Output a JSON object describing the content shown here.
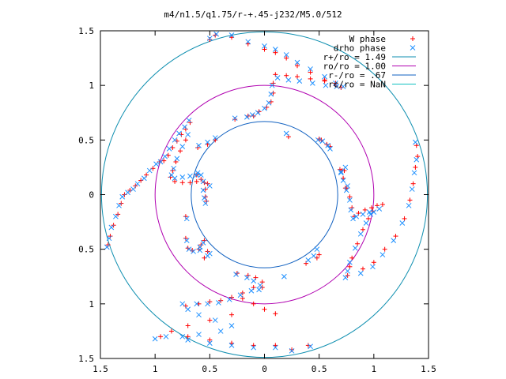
{
  "chart_data": {
    "type": "scatter",
    "title": "m4/n1.5/q1.75/r-+.45-j232/M5.0/512",
    "xlabel": "",
    "ylabel": "",
    "xlim": [
      -1.5,
      1.5
    ],
    "ylim": [
      -1.5,
      1.5
    ],
    "x_ticks": [
      -1.5,
      -1,
      -0.5,
      0,
      0.5,
      1,
      1.5
    ],
    "y_ticks": [
      -1.5,
      -1,
      -0.5,
      0,
      0.5,
      1,
      1.5
    ],
    "x_tick_labels": [
      "1.5",
      "1",
      "0.5",
      "0",
      "0.5",
      "1",
      "1.5"
    ],
    "y_tick_labels": [
      "1.5",
      "1",
      "0.5",
      "0",
      "0.5",
      "1",
      "1.5"
    ],
    "grid": false,
    "legend_position": "top-right",
    "legend": [
      {
        "label": "W phase",
        "color": "#ff0000",
        "marker": "plus"
      },
      {
        "label": "drho phase",
        "color": "#1e90ff",
        "marker": "x"
      },
      {
        "label": "r+/ro = 1.49",
        "color": "#0f8fb0",
        "marker": "line"
      },
      {
        "label": "ro/ro = 1.00",
        "color": "#b000b0",
        "marker": "line"
      },
      {
        "label": "r-/ro = .67",
        "color": "#1060c0",
        "marker": "line"
      },
      {
        "label": "rc/ro = NaN",
        "color": "#10c0c0",
        "marker": "line"
      }
    ],
    "circles": [
      {
        "name": "r+/ro = 1.49",
        "radius": 1.49,
        "color": "#0f8fb0"
      },
      {
        "name": "ro/ro = 1.00",
        "radius": 1.0,
        "color": "#b000b0"
      },
      {
        "name": "r-/ro = .67",
        "radius": 0.67,
        "color": "#1060c0"
      }
    ],
    "series": [
      {
        "name": "W phase",
        "color": "#ff0000",
        "marker": "plus",
        "points": [
          [
            -0.92,
            0.31
          ],
          [
            -0.88,
            0.36
          ],
          [
            -0.84,
            0.43
          ],
          [
            -0.8,
            0.49
          ],
          [
            -0.76,
            0.55
          ],
          [
            -0.72,
            0.6
          ],
          [
            -0.68,
            0.66
          ],
          [
            -0.72,
            0.5
          ],
          [
            -0.77,
            0.4
          ],
          [
            -0.81,
            0.3
          ],
          [
            -0.84,
            0.22
          ],
          [
            -0.86,
            0.16
          ],
          [
            -0.82,
            0.12
          ],
          [
            -0.75,
            0.11
          ],
          [
            -0.68,
            0.11
          ],
          [
            -0.62,
            0.12
          ],
          [
            -0.58,
            0.14
          ],
          [
            -0.55,
            0.11
          ],
          [
            -0.54,
            0.05
          ],
          [
            -0.54,
            -0.02
          ],
          [
            -0.53,
            -0.06
          ],
          [
            -0.96,
            0.3
          ],
          [
            -1.02,
            0.24
          ],
          [
            -1.08,
            0.18
          ],
          [
            -1.13,
            0.13
          ],
          [
            -1.18,
            0.08
          ],
          [
            -1.23,
            0.04
          ],
          [
            -1.28,
            0
          ],
          [
            -1.31,
            -0.08
          ],
          [
            -1.34,
            -0.18
          ],
          [
            -1.38,
            -0.28
          ],
          [
            -1.41,
            -0.38
          ],
          [
            -1.43,
            -0.46
          ],
          [
            -0.5,
            1.42
          ],
          [
            -0.45,
            1.46
          ],
          [
            -0.3,
            1.44
          ],
          [
            -0.15,
            1.38
          ],
          [
            0,
            1.33
          ],
          [
            0.1,
            1.3
          ],
          [
            0.2,
            1.25
          ],
          [
            0.3,
            1.18
          ],
          [
            0.42,
            1.12
          ],
          [
            0.55,
            1.05
          ],
          [
            0.65,
            1.0
          ],
          [
            0.7,
            0.98
          ],
          [
            0.1,
            1.1
          ],
          [
            0.2,
            1.09
          ],
          [
            0.3,
            1.08
          ],
          [
            0.42,
            1.06
          ],
          [
            0.55,
            1.04
          ],
          [
            0.65,
            1.02
          ],
          [
            0.08,
            1.02
          ],
          [
            0.08,
            0.93
          ],
          [
            0.06,
            0.85
          ],
          [
            0.02,
            0.8
          ],
          [
            -0.05,
            0.76
          ],
          [
            -0.15,
            0.72
          ],
          [
            -0.27,
            0.69
          ],
          [
            -0.1,
            0.72
          ],
          [
            0.5,
            0.51
          ],
          [
            0.52,
            0.5
          ],
          [
            0.57,
            0.46
          ],
          [
            0.6,
            0.44
          ],
          [
            0.71,
            0.22
          ],
          [
            0.72,
            0.15
          ],
          [
            0.69,
            0.23
          ],
          [
            0.74,
            0.06
          ],
          [
            0.78,
            -0.02
          ],
          [
            0.8,
            -0.12
          ],
          [
            0.82,
            -0.2
          ],
          [
            0.86,
            -0.17
          ],
          [
            0.92,
            -0.14
          ],
          [
            0.98,
            -0.12
          ],
          [
            1.03,
            -0.1
          ],
          [
            1.08,
            -0.09
          ],
          [
            0.99,
            -0.15
          ],
          [
            0.95,
            -0.22
          ],
          [
            0.9,
            -0.32
          ],
          [
            0.85,
            -0.45
          ],
          [
            0.8,
            -0.58
          ],
          [
            0.78,
            -0.66
          ],
          [
            0.76,
            -0.74
          ],
          [
            0.9,
            -0.68
          ],
          [
            1.0,
            -0.62
          ],
          [
            1.1,
            -0.5
          ],
          [
            1.2,
            -0.38
          ],
          [
            1.28,
            -0.22
          ],
          [
            1.33,
            -0.05
          ],
          [
            1.36,
            0.1
          ],
          [
            1.38,
            0.25
          ],
          [
            1.4,
            0.35
          ],
          [
            1.39,
            0.45
          ],
          [
            -0.72,
            -0.4
          ],
          [
            -0.7,
            -0.49
          ],
          [
            -0.66,
            -0.51
          ],
          [
            -0.6,
            -0.5
          ],
          [
            -0.52,
            -0.52
          ],
          [
            -0.55,
            -0.58
          ],
          [
            -0.25,
            -0.72
          ],
          [
            -0.15,
            -0.74
          ],
          [
            -0.08,
            -0.76
          ],
          [
            -0.02,
            -0.8
          ],
          [
            -0.02,
            -0.85
          ],
          [
            -0.1,
            -0.85
          ],
          [
            -0.2,
            -0.9
          ],
          [
            -0.3,
            -0.94
          ],
          [
            -0.4,
            -0.97
          ],
          [
            -0.5,
            -0.98
          ],
          [
            -0.6,
            -1.0
          ],
          [
            -0.72,
            -1.02
          ],
          [
            -0.2,
            -0.95
          ],
          [
            -0.1,
            -1.0
          ],
          [
            0,
            -1.05
          ],
          [
            0.1,
            -1.09
          ],
          [
            -0.3,
            -1.1
          ],
          [
            -0.5,
            -1.15
          ],
          [
            -0.7,
            -1.2
          ],
          [
            -0.85,
            -1.25
          ],
          [
            -0.95,
            -1.3
          ],
          [
            -0.7,
            -1.3
          ],
          [
            -0.5,
            -1.33
          ],
          [
            -0.3,
            -1.36
          ],
          [
            -0.1,
            -1.38
          ],
          [
            0.1,
            -1.38
          ],
          [
            0.25,
            -1.42
          ],
          [
            0.4,
            -1.38
          ],
          [
            -0.45,
            0.5
          ],
          [
            -0.52,
            0.46
          ],
          [
            -0.61,
            0.43
          ],
          [
            -0.62,
            0.18
          ],
          [
            -0.52,
            0.1
          ],
          [
            0.22,
            0.53
          ],
          [
            0.5,
            -0.55
          ],
          [
            0.48,
            -0.58
          ],
          [
            0.38,
            -0.63
          ],
          [
            0.73,
            0.22
          ],
          [
            0.75,
            0.06
          ],
          [
            -0.55,
            -0.42
          ],
          [
            -0.58,
            -0.46
          ],
          [
            -0.72,
            -0.2
          ]
        ]
      },
      {
        "name": "drho phase",
        "color": "#1e90ff",
        "marker": "x",
        "points": [
          [
            -0.95,
            0.3
          ],
          [
            -0.91,
            0.35
          ],
          [
            -0.87,
            0.42
          ],
          [
            -0.82,
            0.5
          ],
          [
            -0.78,
            0.56
          ],
          [
            -0.73,
            0.62
          ],
          [
            -0.69,
            0.68
          ],
          [
            -0.7,
            0.55
          ],
          [
            -0.75,
            0.44
          ],
          [
            -0.8,
            0.33
          ],
          [
            -0.83,
            0.24
          ],
          [
            -0.85,
            0.18
          ],
          [
            -0.82,
            0.15
          ],
          [
            -0.75,
            0.16
          ],
          [
            -0.68,
            0.17
          ],
          [
            -0.62,
            0.18
          ],
          [
            -0.58,
            0.18
          ],
          [
            -0.56,
            0.12
          ],
          [
            -0.56,
            0.04
          ],
          [
            -0.55,
            -0.03
          ],
          [
            -0.54,
            -0.08
          ],
          [
            -0.99,
            0.28
          ],
          [
            -1.05,
            0.22
          ],
          [
            -1.1,
            0.15
          ],
          [
            -1.16,
            0.1
          ],
          [
            -1.2,
            0.05
          ],
          [
            -1.25,
            0.02
          ],
          [
            -1.3,
            -0.02
          ],
          [
            -1.33,
            -0.1
          ],
          [
            -1.36,
            -0.2
          ],
          [
            -1.4,
            -0.3
          ],
          [
            -1.42,
            -0.4
          ],
          [
            -1.44,
            -0.48
          ],
          [
            -0.5,
            1.43
          ],
          [
            -0.44,
            1.47
          ],
          [
            -0.3,
            1.46
          ],
          [
            -0.15,
            1.4
          ],
          [
            0,
            1.36
          ],
          [
            0.1,
            1.33
          ],
          [
            0.2,
            1.28
          ],
          [
            0.3,
            1.21
          ],
          [
            0.42,
            1.15
          ],
          [
            0.55,
            1.08
          ],
          [
            0.65,
            1.02
          ],
          [
            0.72,
            0.99
          ],
          [
            0.12,
            1.07
          ],
          [
            0.22,
            1.05
          ],
          [
            0.32,
            1.04
          ],
          [
            0.44,
            1.02
          ],
          [
            0.56,
            1.0
          ],
          [
            0.66,
            0.99
          ],
          [
            0.07,
            1.0
          ],
          [
            0.06,
            0.92
          ],
          [
            0.04,
            0.84
          ],
          [
            0.0,
            0.79
          ],
          [
            -0.06,
            0.75
          ],
          [
            -0.16,
            0.71
          ],
          [
            -0.27,
            0.7
          ],
          [
            -0.11,
            0.73
          ],
          [
            0.49,
            0.5
          ],
          [
            0.53,
            0.49
          ],
          [
            0.58,
            0.45
          ],
          [
            0.6,
            0.42
          ],
          [
            0.7,
            0.2
          ],
          [
            0.72,
            0.13
          ],
          [
            0.7,
            0.21
          ],
          [
            0.75,
            0.04
          ],
          [
            0.78,
            -0.05
          ],
          [
            0.79,
            -0.14
          ],
          [
            0.81,
            -0.22
          ],
          [
            0.84,
            -0.2
          ],
          [
            0.9,
            -0.18
          ],
          [
            0.96,
            -0.16
          ],
          [
            1.0,
            -0.16
          ],
          [
            1.05,
            -0.13
          ],
          [
            0.97,
            -0.18
          ],
          [
            0.93,
            -0.26
          ],
          [
            0.88,
            -0.36
          ],
          [
            0.83,
            -0.49
          ],
          [
            0.78,
            -0.62
          ],
          [
            0.76,
            -0.7
          ],
          [
            0.74,
            -0.76
          ],
          [
            0.88,
            -0.72
          ],
          [
            0.99,
            -0.66
          ],
          [
            1.08,
            -0.55
          ],
          [
            1.18,
            -0.42
          ],
          [
            1.26,
            -0.26
          ],
          [
            1.32,
            -0.1
          ],
          [
            1.35,
            0.05
          ],
          [
            1.37,
            0.2
          ],
          [
            1.39,
            0.32
          ],
          [
            1.38,
            0.48
          ],
          [
            -0.71,
            -0.42
          ],
          [
            -0.69,
            -0.5
          ],
          [
            -0.65,
            -0.52
          ],
          [
            -0.59,
            -0.51
          ],
          [
            -0.5,
            -0.54
          ],
          [
            -0.52,
            -0.56
          ],
          [
            -0.26,
            -0.73
          ],
          [
            -0.16,
            -0.76
          ],
          [
            -0.1,
            -0.79
          ],
          [
            -0.04,
            -0.83
          ],
          [
            -0.05,
            -0.87
          ],
          [
            -0.12,
            -0.88
          ],
          [
            -0.22,
            -0.92
          ],
          [
            -0.32,
            -0.96
          ],
          [
            -0.42,
            -0.99
          ],
          [
            -0.52,
            -1.0
          ],
          [
            -0.62,
            -1.0
          ],
          [
            -0.75,
            -1.0
          ],
          [
            -0.7,
            -1.05
          ],
          [
            -0.6,
            -1.1
          ],
          [
            -0.45,
            -1.15
          ],
          [
            -0.3,
            -1.2
          ],
          [
            -0.4,
            -1.25
          ],
          [
            -0.6,
            -1.28
          ],
          [
            -0.75,
            -1.3
          ],
          [
            -0.9,
            -1.3
          ],
          [
            -1.0,
            -1.32
          ],
          [
            -0.7,
            -1.33
          ],
          [
            -0.5,
            -1.36
          ],
          [
            -0.3,
            -1.38
          ],
          [
            -0.1,
            -1.4
          ],
          [
            0.1,
            -1.4
          ],
          [
            0.25,
            -1.43
          ],
          [
            0.42,
            -1.39
          ],
          [
            -0.45,
            0.52
          ],
          [
            -0.52,
            0.48
          ],
          [
            -0.6,
            0.45
          ],
          [
            -0.61,
            0.2
          ],
          [
            -0.5,
            0.08
          ],
          [
            0.2,
            0.56
          ],
          [
            0.48,
            -0.5
          ],
          [
            0.45,
            -0.56
          ],
          [
            0.4,
            -0.6
          ],
          [
            0.74,
            0.25
          ],
          [
            0.76,
            0.08
          ],
          [
            -0.56,
            -0.44
          ],
          [
            -0.59,
            -0.48
          ],
          [
            -0.71,
            -0.22
          ],
          [
            0.18,
            -0.75
          ]
        ]
      }
    ]
  }
}
